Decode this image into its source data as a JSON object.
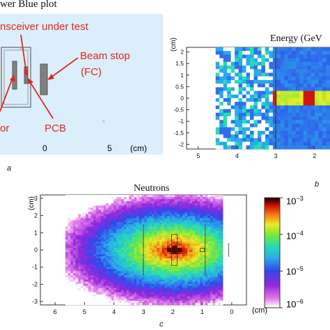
{
  "panel_a": {
    "title": "wer Blue plot",
    "labels": {
      "transceiver": "nsceiver under test",
      "beam_stop": "Beam stop",
      "beam_stop_sub": "(FC)",
      "pcb": "PCB",
      "left_cut": "or"
    },
    "x_ticks": [
      "0",
      "5"
    ],
    "x_unit": "(cm)",
    "letter": "a",
    "colors": {
      "background": "#dbeefb",
      "annotation": "#e0281e",
      "component": "#808080"
    }
  },
  "panel_b": {
    "title": "Energy (GeV",
    "y_unit": "(cm)",
    "y_ticks": [
      "2",
      "1.5",
      "1",
      "0.5",
      "0",
      "-0.5",
      "-1",
      "-1.5",
      "-2"
    ],
    "x_ticks": [
      "5",
      "4",
      "3",
      "2"
    ],
    "letter": "b"
  },
  "panel_c": {
    "title": "Neutrons",
    "y_unit": "(cm)",
    "y_ticks": [
      "3",
      "2",
      "1",
      "0",
      "-1",
      "-2",
      "-3"
    ],
    "x_ticks": [
      "6",
      "5",
      "4",
      "3",
      "2",
      "1",
      "0"
    ],
    "x_unit": "(cm)",
    "colorbar": {
      "labels": [
        "10",
        "10",
        "10",
        "10"
      ],
      "exponents": [
        "−3",
        "−4",
        "−5",
        "−6"
      ],
      "scale": "log",
      "range": [
        "1e-6",
        "1e-3"
      ]
    },
    "letter": "c"
  },
  "chart_data": [
    {
      "type": "heatmap",
      "title": "Energy (GeV",
      "ylabel": "(cm)",
      "xlim": [
        5.3,
        1.6
      ],
      "ylim": [
        -2.2,
        2.2
      ]
    },
    {
      "type": "heatmap",
      "title": "Neutrons",
      "ylabel": "(cm)",
      "xlabel": "(cm)",
      "xlim": [
        6.5,
        -0.5
      ],
      "ylim": [
        -3.2,
        3.2
      ],
      "colorbar_scale": "log",
      "colorbar_range": [
        1e-06,
        0.001
      ]
    }
  ]
}
